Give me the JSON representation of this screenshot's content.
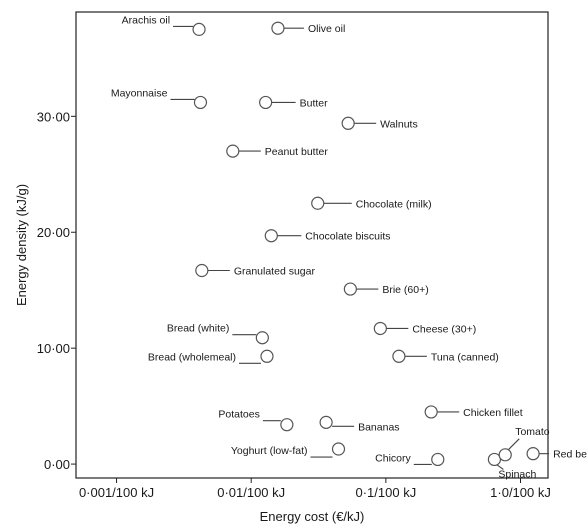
{
  "chart_data": {
    "type": "scatter",
    "title": "",
    "xlabel": "Energy cost (€/kJ)",
    "ylabel": "Energy density (kJ/g)",
    "x_scale": "log",
    "xlim": [
      0.0005,
      1.6
    ],
    "ylim": [
      -1.2,
      39
    ],
    "grid": false,
    "x_ticks": [
      {
        "value": 0.001,
        "label": "0·001/100 kJ"
      },
      {
        "value": 0.01,
        "label": "0·01/100 kJ"
      },
      {
        "value": 0.1,
        "label": "0·1/100 kJ"
      },
      {
        "value": 1.0,
        "label": "1·0/100 kJ"
      }
    ],
    "y_ticks": [
      {
        "value": 0,
        "label": "0·00"
      },
      {
        "value": 10,
        "label": "10·00"
      },
      {
        "value": 20,
        "label": "20·00"
      },
      {
        "value": 30,
        "label": "30·00"
      }
    ],
    "points": [
      {
        "label": "Arachis oil",
        "x": 0.0041,
        "y": 37.5
      },
      {
        "label": "Olive oil",
        "x": 0.0158,
        "y": 37.6
      },
      {
        "label": "Mayonnaise",
        "x": 0.0042,
        "y": 31.2
      },
      {
        "label": "Butter",
        "x": 0.0128,
        "y": 31.2
      },
      {
        "label": "Walnuts",
        "x": 0.0525,
        "y": 29.4
      },
      {
        "label": "Peanut butter",
        "x": 0.0073,
        "y": 27.0
      },
      {
        "label": "Chocolate (milk)",
        "x": 0.0312,
        "y": 22.5
      },
      {
        "label": "Chocolate biscuits",
        "x": 0.0141,
        "y": 19.7
      },
      {
        "label": "Granulated sugar",
        "x": 0.0043,
        "y": 16.7
      },
      {
        "label": "Brie (60+)",
        "x": 0.0545,
        "y": 15.1
      },
      {
        "label": "Cheese (30+)",
        "x": 0.091,
        "y": 11.7
      },
      {
        "label": "Bread (white)",
        "x": 0.0121,
        "y": 10.9
      },
      {
        "label": "Bread (wholemeal)",
        "x": 0.0131,
        "y": 9.3
      },
      {
        "label": "Tuna (canned)",
        "x": 0.125,
        "y": 9.3
      },
      {
        "label": "Chicken fillet",
        "x": 0.217,
        "y": 4.5
      },
      {
        "label": "Bananas",
        "x": 0.036,
        "y": 3.6
      },
      {
        "label": "Potatoes",
        "x": 0.0184,
        "y": 3.4
      },
      {
        "label": "Yoghurt (low-fat)",
        "x": 0.0445,
        "y": 1.3
      },
      {
        "label": "Chicory",
        "x": 0.243,
        "y": 0.4
      },
      {
        "label": "Spinach",
        "x": 0.64,
        "y": 0.4
      },
      {
        "label": "Tomato",
        "x": 0.77,
        "y": 0.8
      },
      {
        "label": "Red berries",
        "x": 1.24,
        "y": 0.9
      }
    ]
  }
}
